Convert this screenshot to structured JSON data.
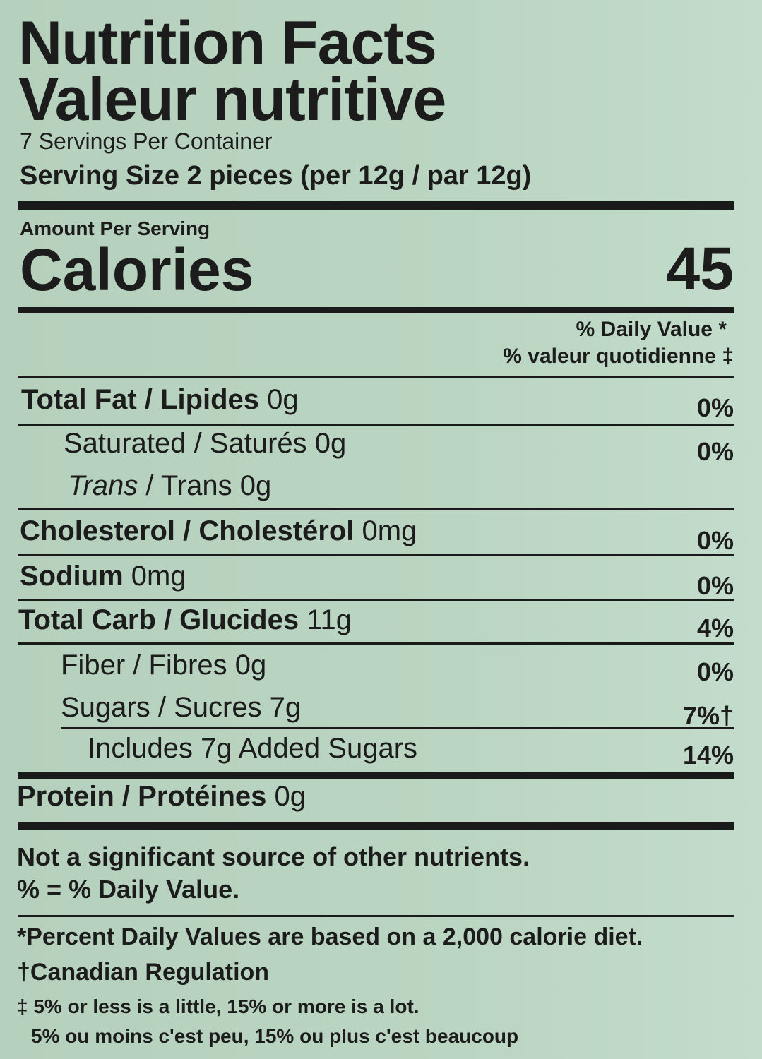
{
  "title_en": "Nutrition Facts",
  "title_fr": "Valeur nutritive",
  "servings": "7 Servings Per Container",
  "serving_size": "Serving Size 2 pieces (per 12g / par 12g)",
  "amount_per_serving": "Amount Per Serving",
  "calories_label": "Calories",
  "calories_value": "45",
  "dv_en": "% Daily Value *",
  "dv_fr": "% valeur quotidienne ‡",
  "rows": [
    {
      "bold": "Total Fat / Lipides",
      "amount": " 0g",
      "dv": "0%"
    },
    {
      "bold": "",
      "amount": "Saturated / Saturés 0g",
      "dv": "0%"
    },
    {
      "italic": "Trans",
      "amount": " / Trans 0g",
      "dv": ""
    },
    {
      "bold": "Cholesterol / Cholestérol",
      "amount": " 0mg",
      "dv": "0%"
    },
    {
      "bold": "Sodium",
      "amount": " 0mg",
      "dv": "0%"
    },
    {
      "bold": "Total Carb / Glucides",
      "amount": " 11g",
      "dv": "4%"
    },
    {
      "bold": "",
      "amount": "Fiber / Fibres 0g",
      "dv": "0%"
    },
    {
      "bold": "",
      "amount": "Sugars / Sucres 7g",
      "dv": "7%†"
    },
    {
      "bold": "",
      "amount": "Includes 7g Added Sugars",
      "dv": "14%"
    },
    {
      "bold": "Protein / Protéines",
      "amount": " 0g",
      "dv": ""
    }
  ],
  "note1": "Not a significant source of other nutrients.",
  "note2": "% = % Daily Value.",
  "foot1": "*Percent Daily Values are based on a 2,000 calorie diet.",
  "foot2": "†Canadian Regulation",
  "foot3": "‡ 5% or less is a little, 15% or more is a lot.",
  "foot4": "5% ou moins c'est peu, 15% ou plus c'est beaucoup",
  "colors": {
    "background": "#b9d3bf",
    "text": "#1c1c1c"
  }
}
